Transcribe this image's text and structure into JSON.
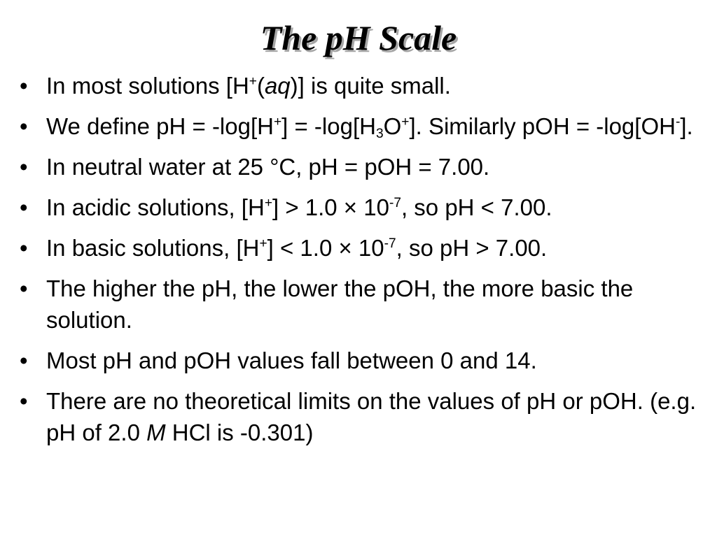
{
  "slide": {
    "title": "The pH Scale",
    "bullets": [
      {
        "parts": [
          {
            "t": "In most solutions [H"
          },
          {
            "t": "+",
            "s": "sup"
          },
          {
            "t": "("
          },
          {
            "t": "aq",
            "s": "i"
          },
          {
            "t": ")] is quite small."
          }
        ]
      },
      {
        "parts": [
          {
            "t": "We define pH = -log[H"
          },
          {
            "t": "+",
            "s": "sup"
          },
          {
            "t": "] = -log[H"
          },
          {
            "t": "3",
            "s": "sub"
          },
          {
            "t": "O"
          },
          {
            "t": "+",
            "s": "sup"
          },
          {
            "t": "].  Similarly pOH = -log[OH"
          },
          {
            "t": "-",
            "s": "sup"
          },
          {
            "t": "]."
          }
        ]
      },
      {
        "parts": [
          {
            "t": "In neutral water at 25 °C, pH = pOH = 7.00."
          }
        ]
      },
      {
        "parts": [
          {
            "t": "In acidic solutions, [H"
          },
          {
            "t": "+",
            "s": "sup"
          },
          {
            "t": "] > 1.0 × 10"
          },
          {
            "t": "-7",
            "s": "sup"
          },
          {
            "t": ", so pH < 7.00."
          }
        ]
      },
      {
        "parts": [
          {
            "t": "In basic solutions, [H"
          },
          {
            "t": "+",
            "s": "sup"
          },
          {
            "t": "] < 1.0 × 10"
          },
          {
            "t": "-7",
            "s": "sup"
          },
          {
            "t": ", so pH > 7.00."
          }
        ]
      },
      {
        "parts": [
          {
            "t": "The higher the pH, the lower the pOH, the more basic the solution."
          }
        ]
      },
      {
        "parts": [
          {
            "t": "Most pH and pOH values fall between 0 and 14."
          }
        ]
      },
      {
        "parts": [
          {
            "t": "There are no theoretical limits on the values of pH or pOH.  (e.g. pH of 2.0 "
          },
          {
            "t": "M",
            "s": "i"
          },
          {
            "t": " HCl is -0.301)"
          }
        ]
      }
    ]
  }
}
